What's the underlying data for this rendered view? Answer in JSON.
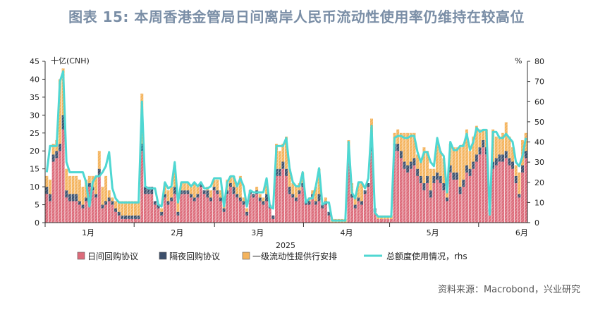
{
  "title": "图表 15: 本周香港金管局日间离岸人民币流动性使用率仍维持在较高位",
  "source": "资料来源：Macrobond，兴业研究",
  "colors": {
    "intraday": "#dc6b7a",
    "overnight": "#3c4f6b",
    "tier1": "#f4b35c",
    "usage": "#4fd7d2",
    "axis": "#333333"
  },
  "chart_data": {
    "type": "bar",
    "stacked": true,
    "title": "",
    "xlabel": "2025",
    "ylabel_left": "十亿(CNH)",
    "ylabel_right": "%",
    "ylim_left": [
      0,
      45
    ],
    "ylim_right": [
      0,
      80
    ],
    "yticks_left": [
      "0",
      "5",
      "10",
      "15",
      "20",
      "25",
      "30",
      "35",
      "40",
      "45"
    ],
    "yticks_right": [
      "0",
      "10",
      "20",
      "30",
      "40",
      "50",
      "60",
      "70",
      "80"
    ],
    "xticks": [
      "1月",
      "2月",
      "3月",
      "4月",
      "5月",
      "6月"
    ],
    "xtick_days": [
      15,
      46,
      74,
      105,
      135,
      166
    ],
    "day_range": [
      0,
      168
    ],
    "legend_position": "bottom",
    "series": [
      {
        "name": "日间回购协议",
        "values": [
          8,
          6,
          17,
          18,
          20,
          26,
          7,
          6,
          6,
          6,
          5,
          4,
          6,
          10,
          9,
          7,
          13,
          4,
          5,
          6,
          5,
          3,
          2,
          1,
          1,
          1,
          1,
          1,
          1,
          20,
          8,
          8,
          8,
          5,
          4,
          2,
          7,
          5,
          6,
          8,
          2,
          8,
          8,
          8,
          7,
          6,
          7,
          10,
          8,
          7,
          6,
          9,
          8,
          6,
          3,
          8,
          10,
          8,
          7,
          6,
          5,
          2,
          8,
          7,
          8,
          6,
          5,
          6,
          4,
          1,
          13,
          13,
          15,
          13,
          8,
          7,
          6,
          8,
          10,
          5,
          5,
          7,
          5,
          6,
          4,
          5,
          2,
          0,
          0,
          0,
          0,
          0,
          17,
          7,
          4,
          6,
          5,
          8,
          10,
          20,
          3,
          1,
          1,
          1,
          1,
          1,
          20,
          20,
          18,
          15,
          14,
          15,
          16,
          13,
          11,
          9,
          11,
          7,
          11,
          12,
          11,
          9,
          6,
          14,
          12,
          12,
          8,
          10,
          14,
          13,
          15,
          17,
          19,
          21,
          19,
          3,
          15,
          16,
          17,
          17,
          18,
          16,
          15,
          11,
          7,
          14,
          18
        ]
      },
      {
        "name": "隔夜回购协议",
        "values": [
          2,
          2,
          2,
          2,
          2,
          4,
          2,
          2,
          2,
          2,
          1,
          1,
          1,
          1,
          1,
          1,
          2,
          1,
          1,
          1,
          1,
          1,
          1,
          1,
          1,
          1,
          1,
          1,
          1,
          2,
          2,
          2,
          2,
          1,
          1,
          1,
          1,
          1,
          1,
          2,
          1,
          1,
          1,
          1,
          1,
          1,
          1,
          1,
          1,
          2,
          1,
          1,
          1,
          1,
          1,
          1,
          1,
          2,
          1,
          1,
          1,
          1,
          1,
          1,
          1,
          1,
          1,
          2,
          1,
          1,
          2,
          2,
          2,
          2,
          2,
          1,
          1,
          1,
          1,
          1,
          1,
          1,
          1,
          2,
          1,
          1,
          1,
          0,
          0,
          0,
          0,
          0,
          2,
          1,
          1,
          1,
          1,
          1,
          1,
          2,
          1,
          0,
          0,
          0,
          0,
          0,
          2,
          2,
          2,
          2,
          2,
          2,
          2,
          2,
          2,
          2,
          2,
          2,
          2,
          2,
          2,
          2,
          1,
          2,
          2,
          2,
          2,
          2,
          2,
          2,
          2,
          2,
          2,
          2,
          2,
          1,
          2,
          2,
          2,
          2,
          2,
          2,
          2,
          2,
          1,
          2,
          2
        ]
      },
      {
        "name": "一级流动性提供行安排",
        "values": [
          3,
          4,
          3,
          3,
          18,
          13,
          6,
          5,
          5,
          5,
          6,
          5,
          5,
          2,
          3,
          5,
          5,
          5,
          7,
          2,
          1,
          2,
          3,
          4,
          4,
          4,
          4,
          4,
          4,
          14,
          0,
          0,
          0,
          0,
          0,
          1,
          3,
          3,
          3,
          6,
          3,
          2,
          2,
          2,
          2,
          4,
          2,
          0,
          0,
          1,
          2,
          2,
          3,
          2,
          1,
          3,
          2,
          3,
          3,
          6,
          1,
          1,
          0,
          0,
          1,
          1,
          1,
          4,
          0,
          0,
          7,
          5,
          5,
          9,
          5,
          3,
          3,
          2,
          3,
          0,
          1,
          1,
          4,
          7,
          0,
          1,
          0,
          1,
          1,
          1,
          1,
          1,
          4,
          3,
          2,
          4,
          5,
          0,
          0,
          7,
          0,
          1,
          1,
          1,
          1,
          1,
          3,
          4,
          5,
          8,
          9,
          8,
          7,
          4,
          4,
          10,
          7,
          6,
          2,
          8,
          7,
          7,
          2,
          6,
          7,
          7,
          11,
          10,
          10,
          5,
          7,
          8,
          5,
          3,
          5,
          0,
          9,
          6,
          5,
          6,
          8,
          6,
          4,
          3,
          6,
          7,
          5
        ]
      },
      {
        "name": "总额度使用情况，rhs",
        "values": [
          25,
          38,
          38,
          38,
          70,
          75,
          30,
          25,
          25,
          25,
          25,
          25,
          20,
          8,
          20,
          23,
          23,
          25,
          28,
          35,
          17,
          12,
          10,
          10,
          10,
          10,
          10,
          10,
          10,
          60,
          18,
          17,
          17,
          17,
          9,
          8,
          20,
          17,
          18,
          30,
          10,
          20,
          20,
          20,
          18,
          20,
          18,
          20,
          17,
          17,
          18,
          22,
          22,
          22,
          8,
          20,
          23,
          23,
          18,
          22,
          18,
          8,
          16,
          15,
          15,
          15,
          15,
          22,
          8,
          7,
          38,
          38,
          38,
          42,
          27,
          20,
          18,
          18,
          25,
          10,
          12,
          12,
          18,
          27,
          9,
          10,
          10,
          1,
          1,
          1,
          1,
          1,
          40,
          15,
          12,
          20,
          20,
          17,
          22,
          48,
          5,
          3,
          3,
          3,
          3,
          3,
          42,
          43,
          43,
          42,
          42,
          43,
          43,
          35,
          30,
          35,
          35,
          30,
          28,
          42,
          35,
          33,
          15,
          40,
          36,
          36,
          38,
          38,
          44,
          36,
          40,
          47,
          45,
          46,
          46,
          4,
          45,
          45,
          42,
          42,
          44,
          42,
          40,
          30,
          28,
          33,
          42
        ]
      }
    ]
  },
  "legend": [
    {
      "label": "日间回购协议",
      "kind": "box",
      "color": "#dc6b7a"
    },
    {
      "label": "隔夜回购协议",
      "kind": "box",
      "color": "#3c4f6b"
    },
    {
      "label": "一级流动性提供行安排",
      "kind": "box",
      "color": "#f4b35c"
    },
    {
      "label": "总额度使用情况，rhs",
      "kind": "line",
      "color": "#4fd7d2"
    }
  ]
}
